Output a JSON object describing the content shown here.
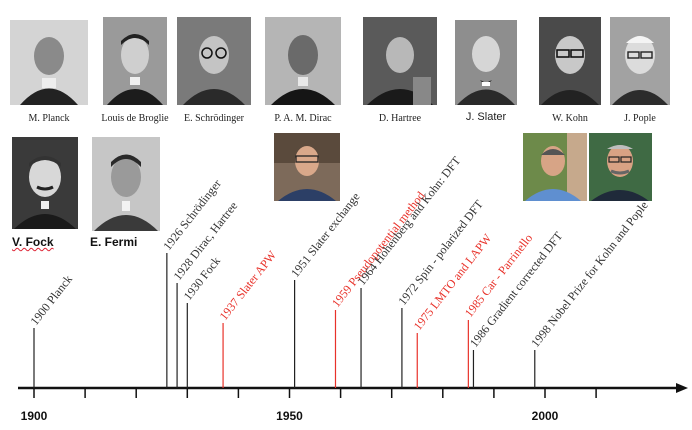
{
  "scientists_top": [
    {
      "name": "M. Planck",
      "bg": "#c8c8c8"
    },
    {
      "name": "Louis de Broglie",
      "bg": "#9a9a9a"
    },
    {
      "name": "E. Schrödinger",
      "bg": "#8a8a8a"
    },
    {
      "name": "P. A. M. Dirac",
      "bg": "#b0b0b0"
    },
    {
      "name": "D. Hartree",
      "bg": "#6e6e6e"
    },
    {
      "name": "J. Slater",
      "bg": "#7e7e7e"
    },
    {
      "name": "W. Kohn",
      "bg": "#5c5c5c"
    },
    {
      "name": "J. Pople",
      "bg": "#9c9c9c"
    }
  ],
  "scientists_second": [
    {
      "name": "V. Fock"
    },
    {
      "name": "E. Fermi"
    }
  ],
  "axis": {
    "ticks": [
      "1900",
      "1950",
      "2000"
    ]
  },
  "events": [
    {
      "year": 1900,
      "label": "1900 Planck",
      "color": "#333333"
    },
    {
      "year": 1926,
      "label": "1926 Schrödinger",
      "color": "#333333"
    },
    {
      "year": 1928,
      "label": "1928 Dirac, Hartree",
      "color": "#333333"
    },
    {
      "year": 1930,
      "label": "1930 Fock",
      "color": "#333333"
    },
    {
      "year": 1937,
      "label": "1937 Slater APW",
      "color": "#e8322a"
    },
    {
      "year": 1951,
      "label": "1951 Slater exchange",
      "color": "#333333"
    },
    {
      "year": 1959,
      "label": "1959 Pseudopotential method",
      "color": "#e8322a"
    },
    {
      "year": 1964,
      "label": "1964 Hohenberg and Kohn: DFT",
      "color": "#333333"
    },
    {
      "year": 1972,
      "label": "1972 Spin - polarized DFT",
      "color": "#333333"
    },
    {
      "year": 1975,
      "label": "1975 LMTO and LAPW",
      "color": "#e8322a"
    },
    {
      "year": 1985,
      "label": "1985 Car - Parrinello",
      "color": "#e8322a"
    },
    {
      "year": 1986,
      "label": "1986 Gradient corrected DFT",
      "color": "#333333"
    },
    {
      "year": 1998,
      "label": "1998 Nobel Prize for Kohn and Pople",
      "color": "#333333"
    }
  ]
}
